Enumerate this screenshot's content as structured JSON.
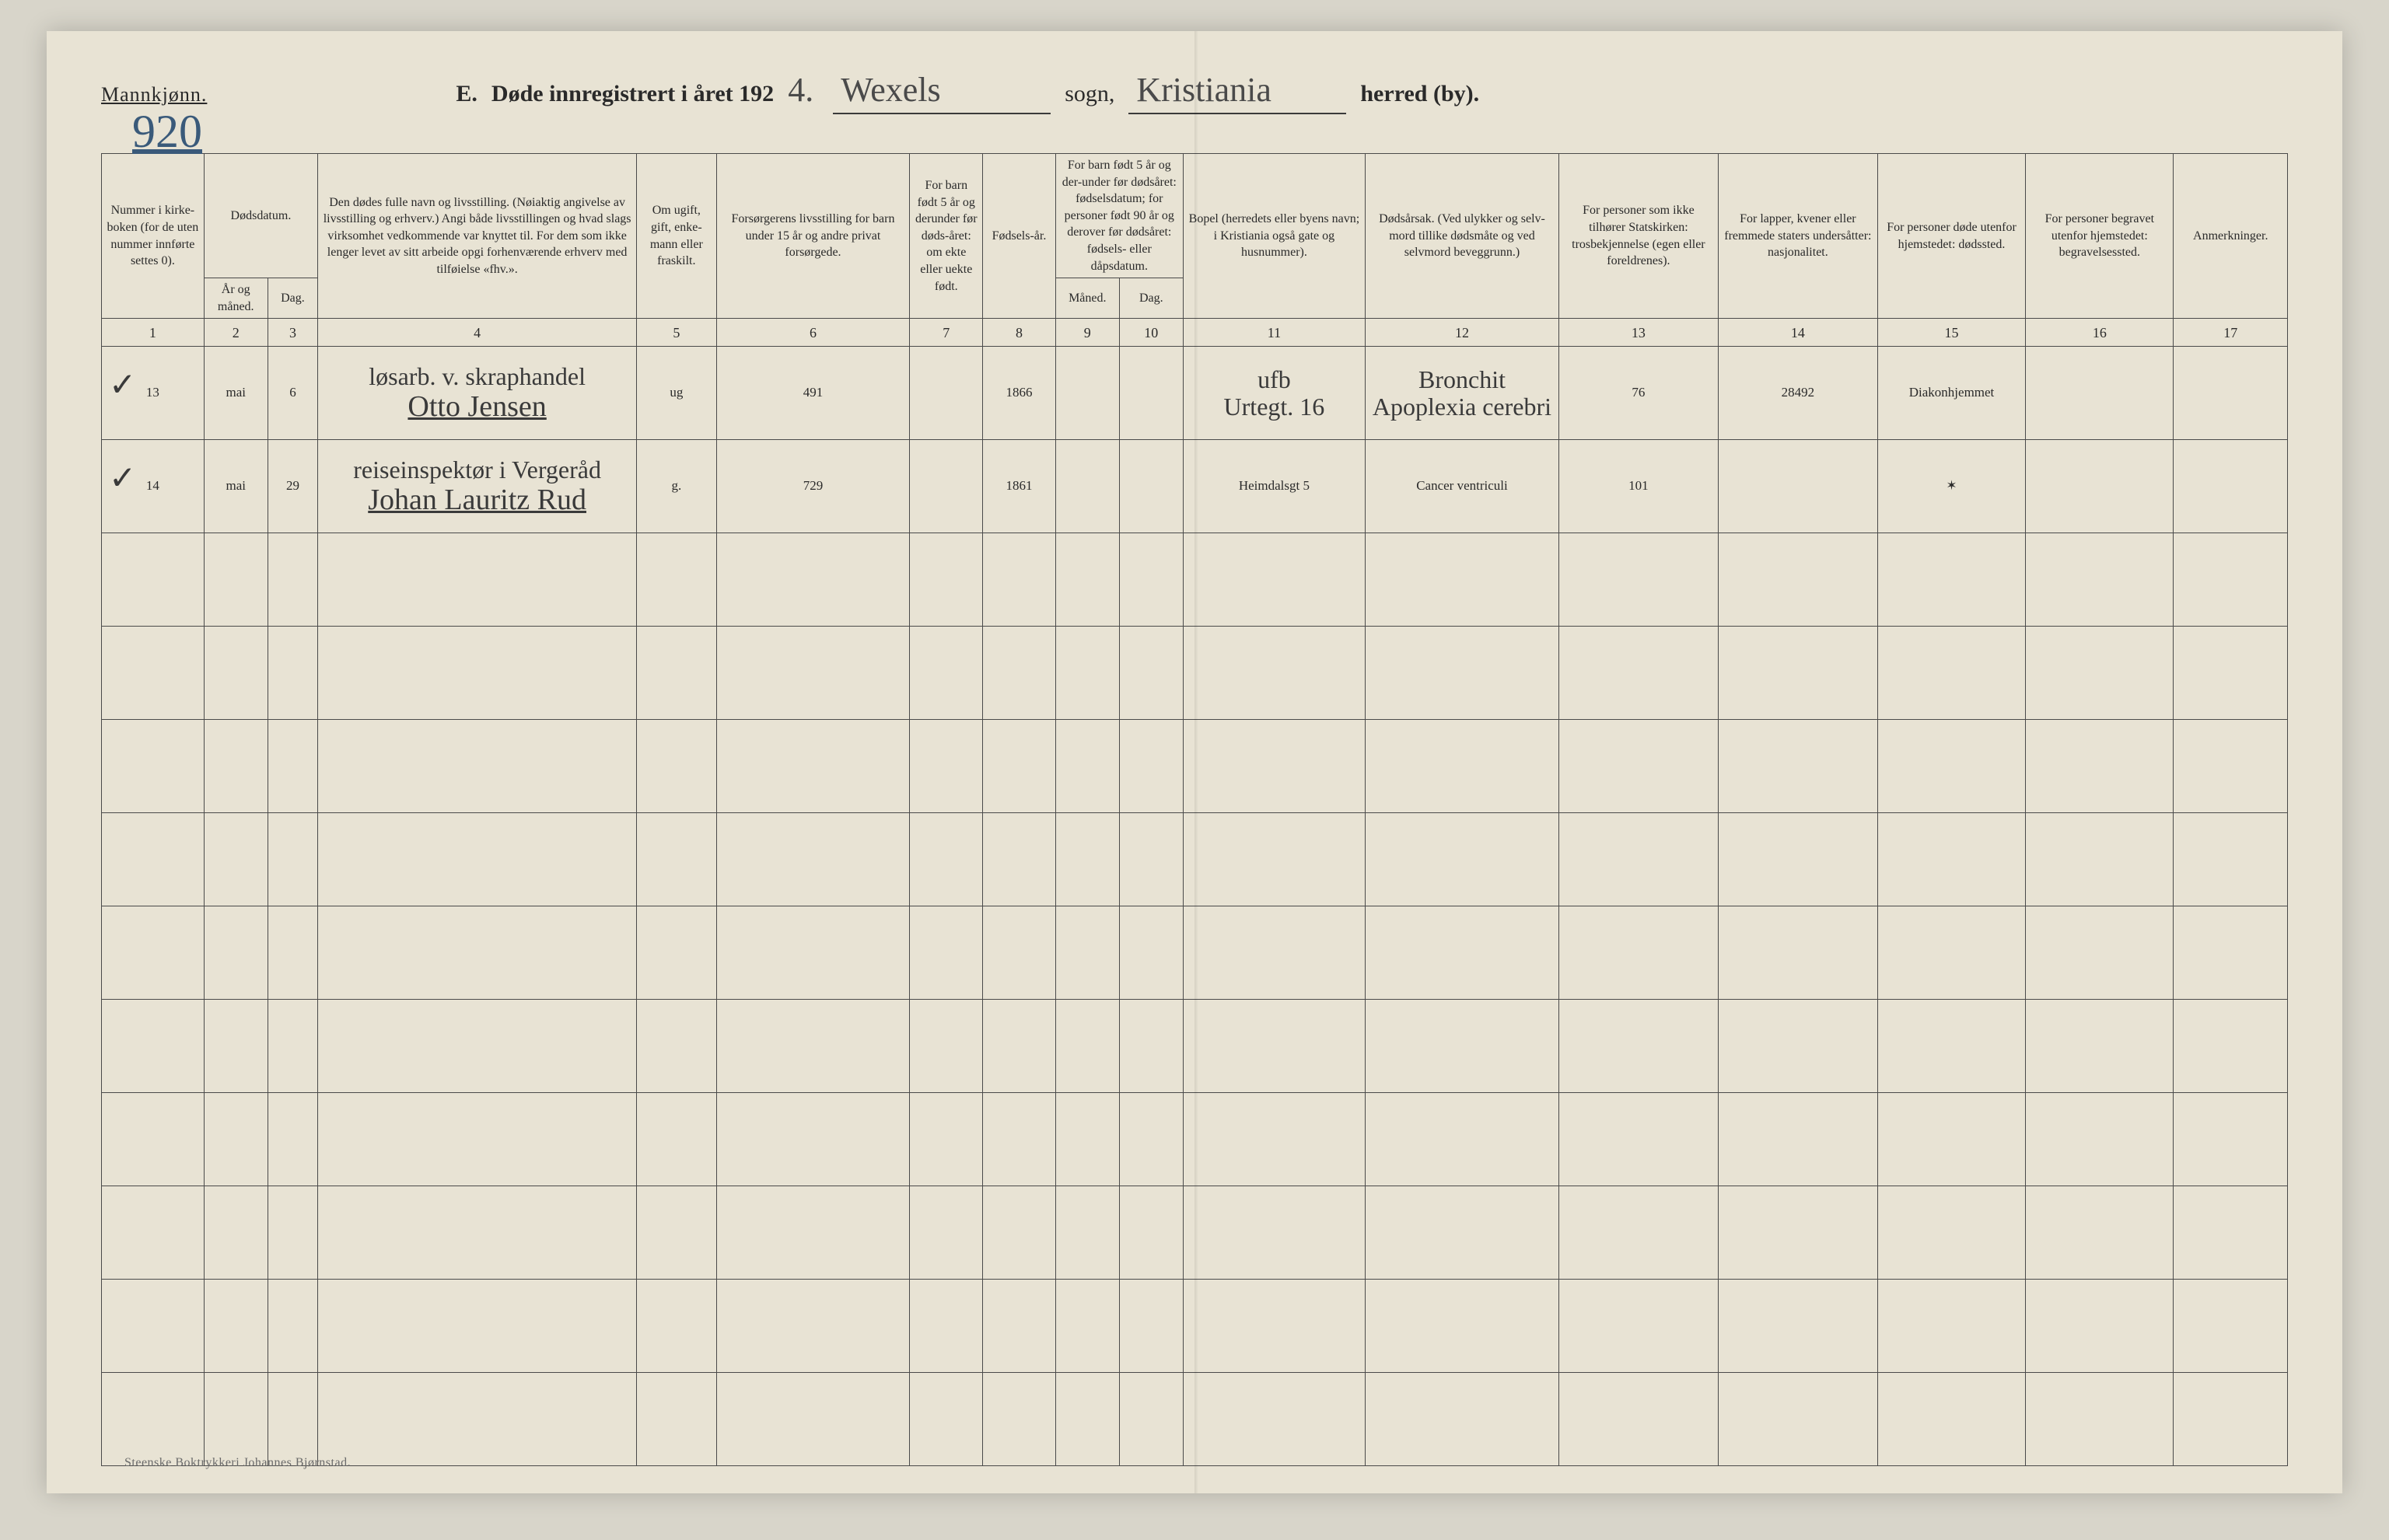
{
  "header": {
    "gender_label": "Mannkjønn.",
    "title_prefix": "E.",
    "title_main": "Døde innregistrert i året 192",
    "year_suffix": "4.",
    "parish_value": "Wexels",
    "parish_label": "sogn,",
    "district_value": "Kristiania",
    "district_label": "herred (by).",
    "page_number": "920"
  },
  "columns": {
    "c1": "Nummer i kirke-boken (for de uten nummer innførte settes 0).",
    "c2_top": "Dødsdatum.",
    "c2a": "År og måned.",
    "c2b": "Dag.",
    "c4": "Den dødes fulle navn og livsstilling. (Nøiaktig angivelse av livsstilling og erhverv.) Angi både livsstillingen og hvad slags virksomhet vedkommende var knyttet til. For dem som ikke lenger levet av sitt arbeide opgi forhenværende erhverv med tilføielse «fhv.».",
    "c5": "Om ugift, gift, enke-mann eller fraskilt.",
    "c6": "Forsørgerens livsstilling for barn under 15 år og andre privat forsørgede.",
    "c7": "For barn født 5 år og derunder før døds-året: om ekte eller uekte født.",
    "c8": "Fødsels-år.",
    "c9_top": "For barn født 5 år og der-under før dødsåret: fødselsdatum; for personer født 90 år og derover før dødsåret: fødsels- eller dåpsdatum.",
    "c9a": "Måned.",
    "c9b": "Dag.",
    "c11": "Bopel (herredets eller byens navn; i Kristiania også gate og husnummer).",
    "c12": "Dødsårsak. (Ved ulykker og selv-mord tillike dødsmåte og ved selvmord beveggrunn.)",
    "c13": "For personer som ikke tilhører Statskirken: trosbekjennelse (egen eller foreldrenes).",
    "c14": "For lapper, kvener eller fremmede staters undersåtter: nasjonalitet.",
    "c15": "For personer døde utenfor hjemstedet: dødssted.",
    "c16": "For personer begravet utenfor hjemstedet: begravelsessted.",
    "c17": "Anmerkninger."
  },
  "colnums": [
    "1",
    "2",
    "3",
    "4",
    "5",
    "6",
    "7",
    "8",
    "9",
    "10",
    "11",
    "12",
    "13",
    "14",
    "15",
    "16",
    "17"
  ],
  "rows": [
    {
      "check": "✓",
      "num": "13",
      "month": "mai",
      "day": "6",
      "name_top": "løsarb. v. skraphandel",
      "name_bottom": "Otto Jensen",
      "marital": "ug",
      "provider": "491",
      "birth_year": "1866",
      "residence_top": "ufb",
      "residence_bottom": "Urtegt. 16",
      "cause_top": "Bronchit",
      "cause_bottom": "Apoplexia cerebri",
      "col13": "76",
      "col14": "28492",
      "col15": "Diakonhjemmet"
    },
    {
      "check": "✓",
      "num": "14",
      "month": "mai",
      "day": "29",
      "name_top": "reiseinspektør i Vergeråd",
      "name_bottom": "Johan Lauritz Rud",
      "marital": "g.",
      "provider": "729",
      "birth_year": "1861",
      "residence_bottom": "Heimdalsgt 5",
      "cause_bottom": "Cancer ventriculi",
      "col13": "101",
      "col15": "✶"
    }
  ],
  "empty_row_count": 10,
  "footer": "Steenske Boktrykkeri Johannes Bjørnstad.",
  "colors": {
    "page_bg": "#e8e3d4",
    "body_bg": "#d8d5ca",
    "ink": "#2a2a2a",
    "border": "#4a4a4a",
    "blue_ink": "#3a5a7a",
    "faded_blue": "#5a7a9a"
  }
}
